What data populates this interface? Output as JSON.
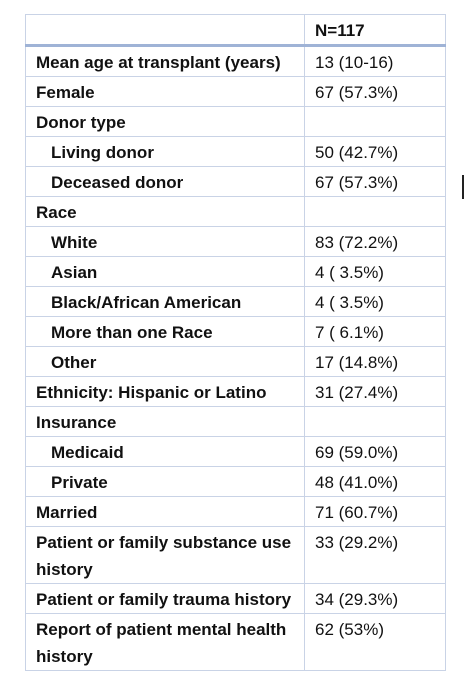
{
  "table": {
    "column_header": "N=117",
    "rows": [
      [
        "Mean age at transplant (years)",
        "13 (10-16)"
      ],
      [
        "Female",
        "67 (57.3%)"
      ],
      [
        "Donor type"
      ],
      [
        "Living donor",
        "50 (42.7%)"
      ],
      [
        "Deceased donor",
        "67 (57.3%)"
      ],
      [
        "Race"
      ],
      [
        "White",
        "83 (72.2%)"
      ],
      [
        "Asian",
        "4 ( 3.5%)"
      ],
      [
        "Black/African American",
        "4 ( 3.5%)"
      ],
      [
        "More than one Race",
        "7 ( 6.1%)"
      ],
      [
        "Other",
        "17 (14.8%)"
      ],
      [
        "Ethnicity: Hispanic or Latino",
        "31 (27.4%)"
      ],
      [
        "Insurance"
      ],
      [
        "Medicaid",
        "69 (59.0%)"
      ],
      [
        "Private",
        "48 (41.0%)"
      ],
      [
        "Married",
        "71 (60.7%)"
      ],
      [
        "Patient or family substance use history",
        "33 (29.2%)"
      ],
      [
        "Patient or family trauma history",
        "34 (29.3%)"
      ],
      [
        "Report of patient mental health history",
        "62 (53%)"
      ]
    ]
  }
}
